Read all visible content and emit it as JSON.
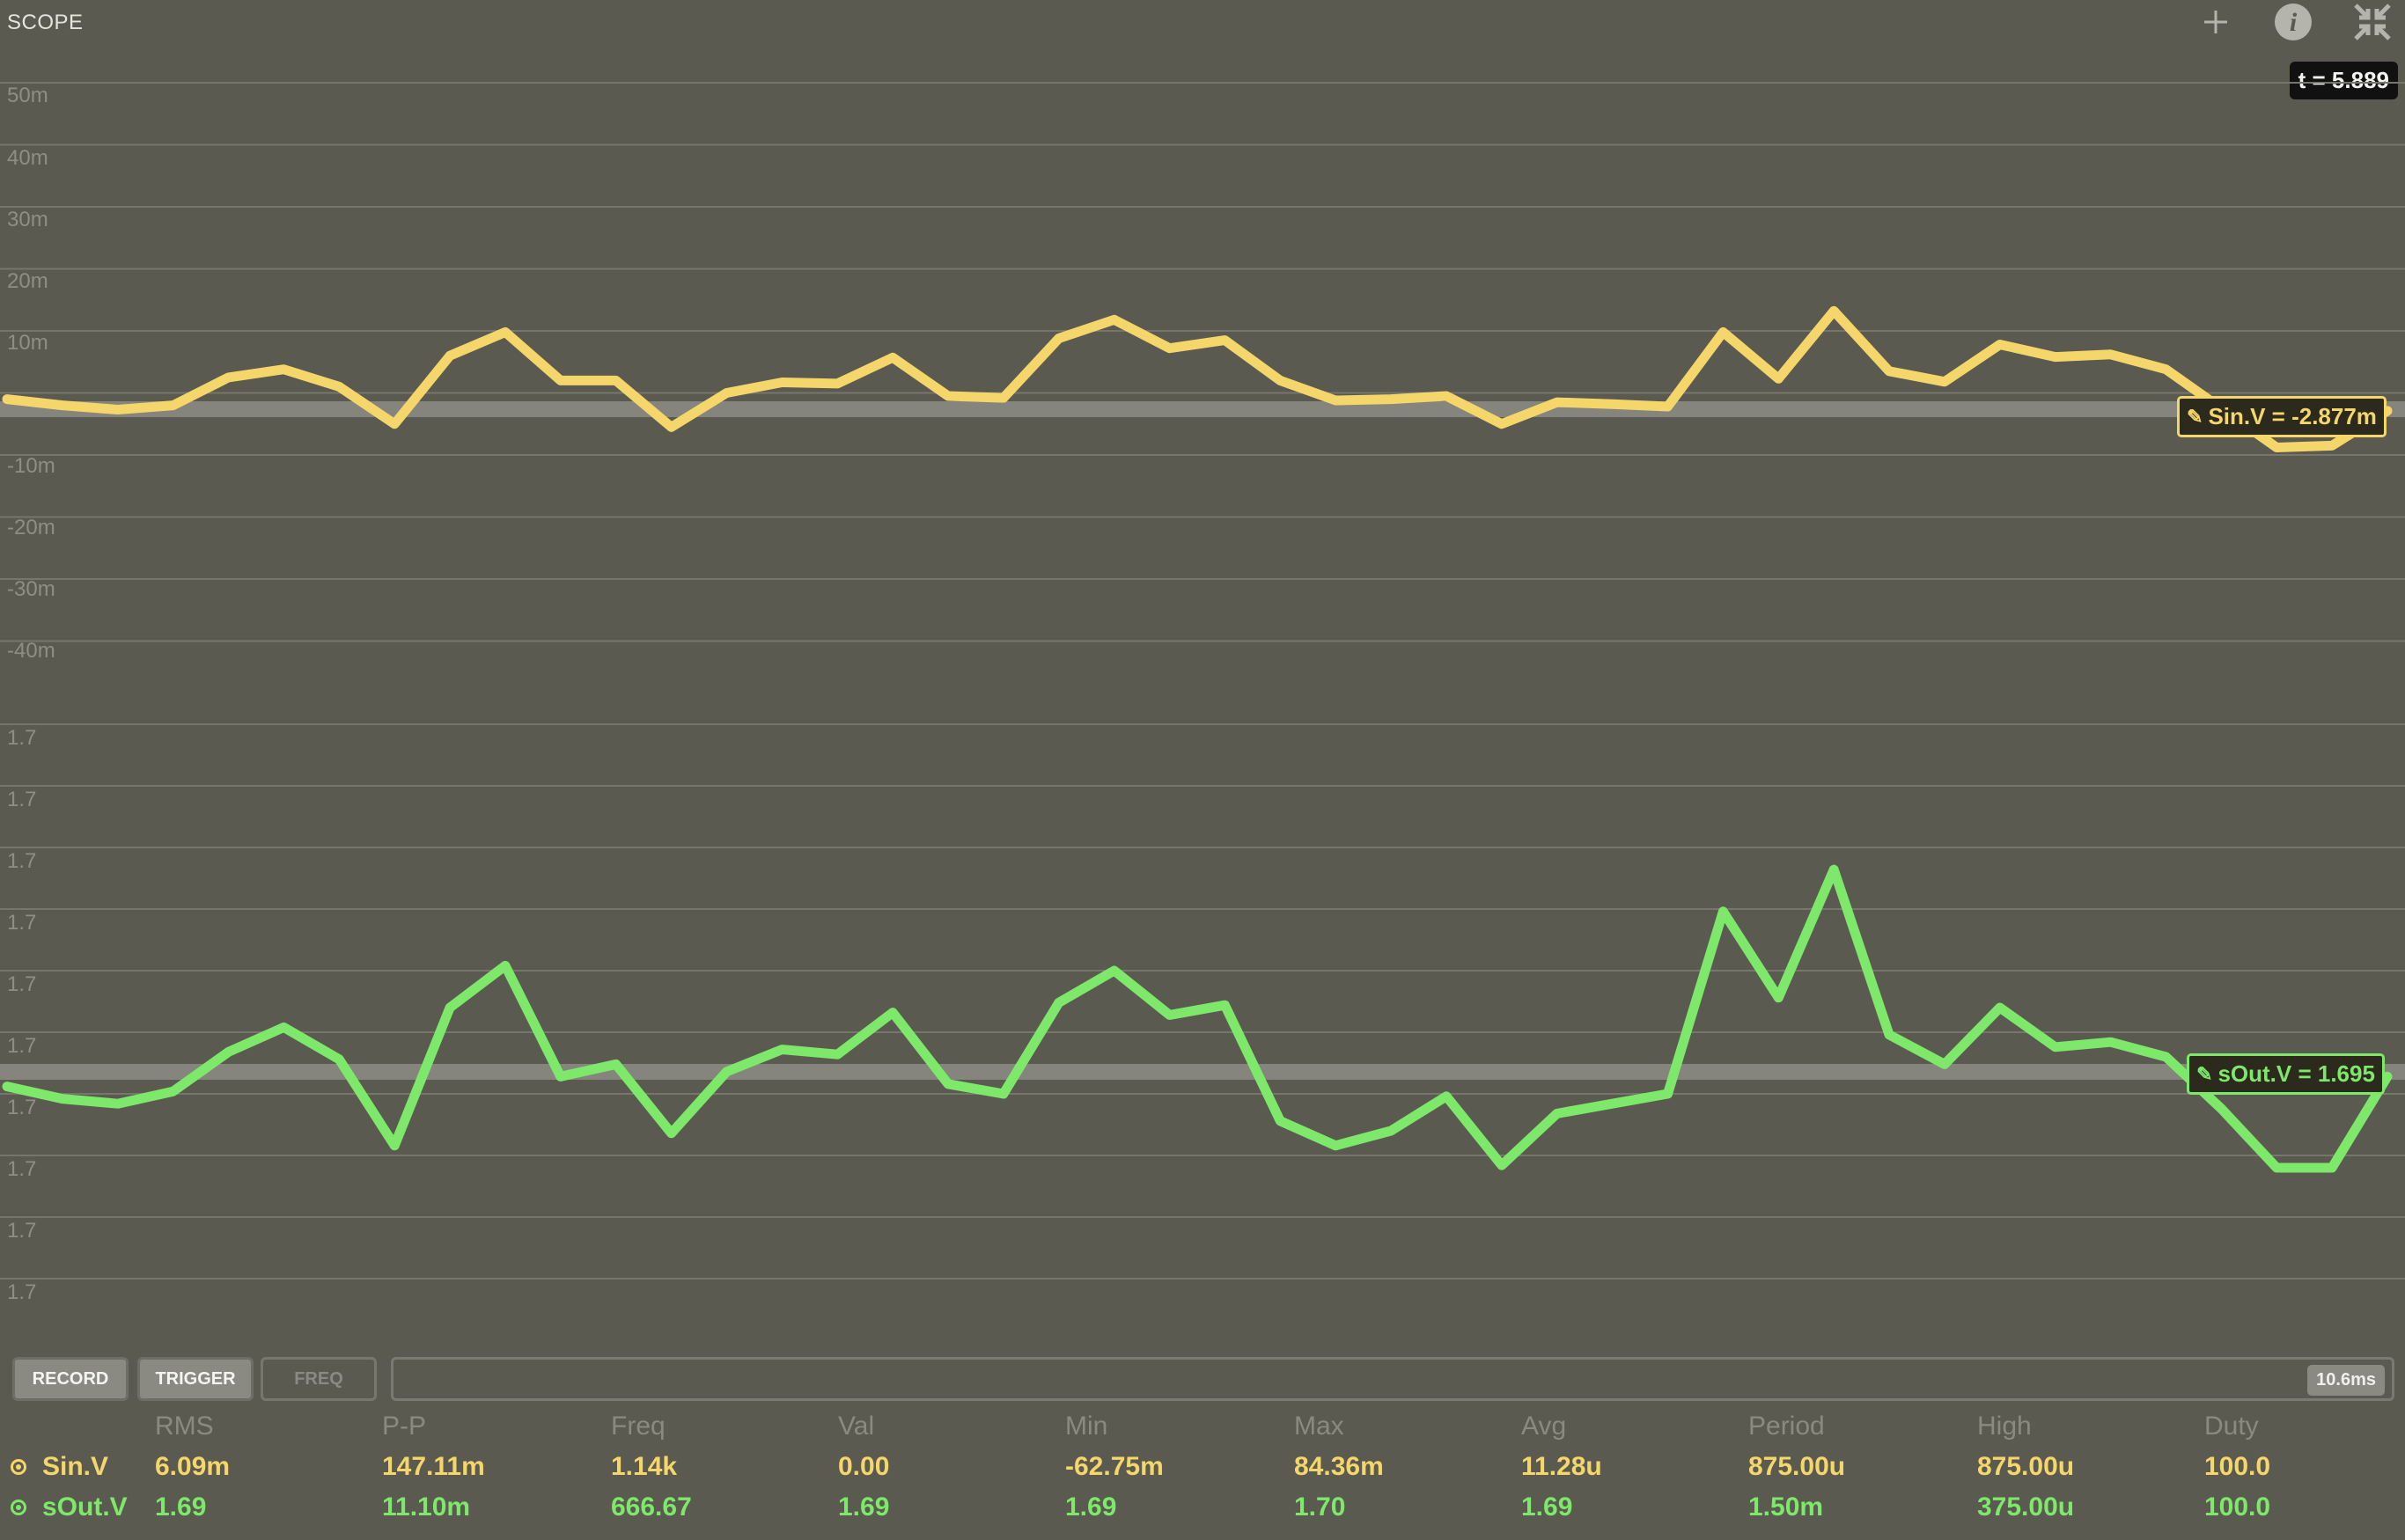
{
  "title": "SCOPE",
  "time_readout": "t = 5.889",
  "colors": {
    "sin": "#f5d66a",
    "sout": "#7de86a",
    "grid": "#76766c",
    "bg": "#5a5a50"
  },
  "icons": {
    "add": "plus-icon",
    "info": "info-icon",
    "collapse": "collapse-icon"
  },
  "top_axis_labels": [
    "50m",
    "40m",
    "30m",
    "20m",
    "10m",
    "-10m",
    "-20m",
    "-30m",
    "-40m"
  ],
  "bottom_axis_labels": [
    "1.7",
    "1.7",
    "1.7",
    "1.7",
    "1.7",
    "1.7",
    "1.7",
    "1.7",
    "1.7",
    "1.7"
  ],
  "markers": {
    "sin": "Sin.V = -2.877m",
    "sout": "sOut.V = 1.695"
  },
  "toolbar": {
    "record": "RECORD",
    "trigger": "TRIGGER",
    "freq": "FREQ",
    "timescale": "10.6ms"
  },
  "stats": {
    "headers": [
      "RMS",
      "P-P",
      "Freq",
      "Val",
      "Min",
      "Max",
      "Avg",
      "Period",
      "High",
      "Duty"
    ],
    "rows": [
      {
        "name": "Sin.V",
        "values": [
          "6.09m",
          "147.11m",
          "1.14k",
          "0.00",
          "-62.75m",
          "84.36m",
          "11.28u",
          "875.00u",
          "875.00u",
          "100.0"
        ]
      },
      {
        "name": "sOut.V",
        "values": [
          "1.69",
          "11.10m",
          "666.67",
          "1.69",
          "1.69",
          "1.70",
          "1.69",
          "1.50m",
          "375.00u",
          "100.0"
        ]
      }
    ]
  },
  "chart_data": {
    "type": "line",
    "xlabel": "",
    "time_window": "10.6ms",
    "charts": [
      {
        "name": "Sin.V",
        "ylim": [
          -0.05,
          0.05
        ],
        "y_ticks": [
          "50m",
          "40m",
          "30m",
          "20m",
          "10m",
          "-10m",
          "-20m",
          "-30m",
          "-40m"
        ],
        "values": [
          -0.001,
          -0.002,
          -0.0027,
          -0.002,
          0.0025,
          0.0038,
          0.001,
          -0.005,
          0.006,
          0.0098,
          0.002,
          0.002,
          -0.0055,
          0.0,
          0.0017,
          0.0015,
          0.0057,
          -0.0005,
          -0.0008,
          0.0088,
          0.0118,
          0.0072,
          0.0085,
          0.002,
          -0.0012,
          -0.001,
          -0.0005,
          -0.005,
          -0.0015,
          -0.0018,
          -0.0022,
          0.0098,
          0.0023,
          0.0132,
          0.0035,
          0.0018,
          0.0078,
          0.0058,
          0.0062,
          0.0038,
          -0.0025,
          -0.0088,
          -0.0085,
          -0.0029
        ]
      },
      {
        "name": "sOut.V",
        "ylim": [
          1.684,
          1.709
        ],
        "y_ticks": [
          "1.7",
          "1.7",
          "1.7",
          "1.7",
          "1.7",
          "1.7",
          "1.7",
          "1.7",
          "1.7",
          "1.7"
        ],
        "values": [
          1.6943,
          1.6938,
          1.6936,
          1.6941,
          1.6957,
          1.6967,
          1.6954,
          1.6919,
          1.6975,
          1.6992,
          1.6947,
          1.6952,
          1.6924,
          1.6949,
          1.6958,
          1.6956,
          1.6973,
          1.6944,
          1.694,
          1.6977,
          1.699,
          1.6972,
          1.6976,
          1.6929,
          1.6919,
          1.6925,
          1.6939,
          1.6911,
          1.6932,
          1.6936,
          1.694,
          1.7014,
          1.6979,
          1.7031,
          1.6964,
          1.6952,
          1.6975,
          1.6959,
          1.6961,
          1.6955,
          1.6934,
          1.691,
          1.691,
          1.6947
        ]
      }
    ]
  }
}
